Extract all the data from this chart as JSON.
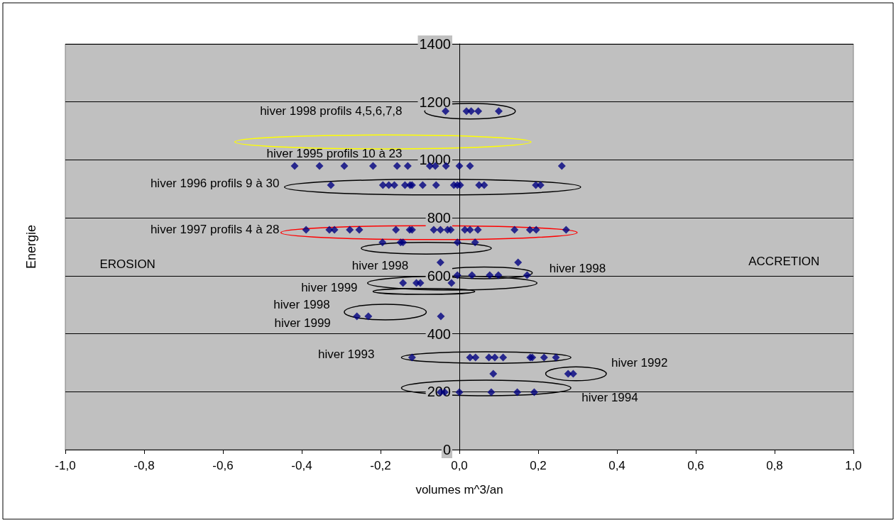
{
  "chart_data": {
    "type": "scatter",
    "xlabel": "volumes m^3/an",
    "ylabel": "Energie",
    "xlim": [
      -1,
      1
    ],
    "xticks": [
      {
        "value": -1,
        "label": "-1,0"
      },
      {
        "value": -0.8,
        "label": "-0,8"
      },
      {
        "value": -0.6,
        "label": "-0,6"
      },
      {
        "value": -0.4,
        "label": "-0,4"
      },
      {
        "value": -0.2,
        "label": "-0,2"
      },
      {
        "value": 0,
        "label": "0,0"
      },
      {
        "value": 0.2,
        "label": "0,2"
      },
      {
        "value": 0.4,
        "label": "0,4"
      },
      {
        "value": 0.6,
        "label": "0,6"
      },
      {
        "value": 0.8,
        "label": "0,8"
      },
      {
        "value": 1,
        "label": "1,0"
      }
    ],
    "ylim": [
      0,
      1400
    ],
    "yticks": [
      0,
      200,
      400,
      600,
      800,
      1000,
      1200,
      1400
    ],
    "grid": "y",
    "marker": "diamond",
    "series": [
      {
        "color": "#000080",
        "x": [
          -0.035,
          0.018,
          0.03,
          0.048,
          0.1,
          -0.418,
          -0.355,
          -0.292,
          -0.219,
          -0.158,
          -0.131,
          -0.075,
          -0.061,
          -0.034,
          0,
          0.027,
          0.26,
          -0.326,
          -0.194,
          -0.179,
          -0.165,
          -0.138,
          -0.125,
          -0.12,
          -0.093,
          -0.059,
          -0.014,
          -0.005,
          0.002,
          0.05,
          0.063,
          0.194,
          0.206,
          -0.389,
          -0.33,
          -0.317,
          -0.278,
          -0.254,
          -0.161,
          -0.126,
          -0.12,
          -0.065,
          -0.048,
          -0.03,
          -0.022,
          0.014,
          0.027,
          0.047,
          0.14,
          0.179,
          0.195,
          0.271,
          -0.195,
          -0.149,
          -0.143,
          -0.005,
          0.04,
          -0.048,
          0.149,
          -0.005,
          0.032,
          0.077,
          0.099,
          0.172,
          -0.143,
          -0.109,
          -0.099,
          -0.02,
          -0.26,
          -0.231,
          -0.047,
          -0.12,
          0.027,
          0.041,
          0.075,
          0.09,
          0.111,
          0.18,
          0.185,
          0.215,
          0.245,
          0.086,
          0.276,
          0.289,
          -0.048,
          -0.037,
          0,
          0.081,
          0.147,
          0.19
        ],
        "values": [
          1168,
          1168,
          1168,
          1168,
          1168,
          979,
          979,
          979,
          979,
          979,
          979,
          979,
          979,
          979,
          979,
          979,
          979,
          913,
          913,
          913,
          913,
          913,
          913,
          913,
          913,
          913,
          913,
          913,
          913,
          913,
          913,
          913,
          913,
          759,
          759,
          759,
          759,
          759,
          759,
          759,
          759,
          759,
          759,
          759,
          759,
          759,
          759,
          759,
          759,
          759,
          759,
          759,
          715,
          715,
          715,
          715,
          715,
          646,
          646,
          602,
          602,
          602,
          602,
          602,
          575,
          575,
          575,
          575,
          460,
          460,
          460,
          318,
          318,
          318,
          318,
          318,
          318,
          318,
          318,
          318,
          318,
          262,
          262,
          262,
          198,
          198,
          198,
          198,
          198,
          198
        ]
      }
    ],
    "annotations": [
      "hiver 1998 profils 4,5,6,7,8",
      "hiver 1995 profils 10 à 23",
      "hiver 1996 profils 9 à 30",
      "hiver 1997 profils 4 à 28",
      "EROSION",
      "ACCRETION",
      "hiver 1998",
      "hiver 1998",
      "hiver 1999",
      "hiver 1998",
      "hiver 1999",
      "hiver 1993",
      "hiver 1992",
      "hiver 1994"
    ]
  }
}
